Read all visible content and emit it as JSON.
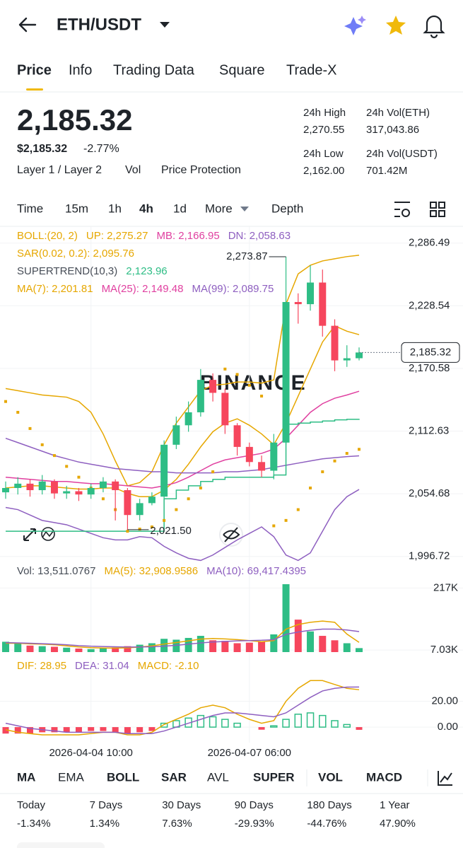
{
  "header": {
    "pair": "ETH/USDT"
  },
  "tabs": [
    "Price",
    "Info",
    "Trading Data",
    "Square",
    "Trade-X"
  ],
  "price": {
    "last": "2,185.32",
    "usd": "$2,185.32",
    "change": "-2.77%",
    "tags": [
      "Layer 1 / Layer 2",
      "Vol",
      "Price Protection"
    ]
  },
  "stats": [
    {
      "label": "24h High",
      "value": "2,270.55"
    },
    {
      "label": "24h Vol(ETH)",
      "value": "317,043.86"
    },
    {
      "label": "24h Low",
      "value": "2,162.00"
    },
    {
      "label": "24h Vol(USDT)",
      "value": "701.42M"
    }
  ],
  "intervals": [
    "Time",
    "15m",
    "1h",
    "4h",
    "1d",
    "More",
    "Depth"
  ],
  "watermark": "BINANCE",
  "chart_data": [
    {
      "type": "candlestick",
      "categories": [
        null,
        null,
        null,
        null,
        null,
        null,
        null,
        "2026-04-04 10:00",
        null,
        null,
        null,
        null,
        null,
        null,
        null,
        null,
        null,
        null,
        null,
        null,
        "2026-04-07 06:00",
        null,
        null,
        null,
        null,
        null,
        null,
        null,
        null,
        null
      ],
      "open": [
        2056,
        2060,
        2064,
        2058,
        2066,
        2055,
        2057,
        2054,
        2060,
        2066,
        2058,
        2035,
        2046,
        2052,
        2100,
        2118,
        2130,
        2160,
        2148,
        2118,
        2098,
        2084,
        2076,
        2102,
        2232,
        2230,
        2250,
        2210,
        2178,
        2180
      ],
      "high": [
        2066,
        2070,
        2068,
        2072,
        2068,
        2062,
        2060,
        2064,
        2070,
        2068,
        2060,
        2050,
        2056,
        2104,
        2126,
        2140,
        2170,
        2166,
        2152,
        2120,
        2102,
        2090,
        2110,
        2273.87,
        2240,
        2266,
        2262,
        2216,
        2192,
        2190
      ],
      "low": [
        2050,
        2054,
        2052,
        2054,
        2050,
        2050,
        2048,
        2050,
        2056,
        2030,
        2021.5,
        2030,
        2044,
        2050,
        2096,
        2112,
        2126,
        2140,
        2110,
        2090,
        2080,
        2070,
        2068,
        2100,
        2212,
        2224,
        2200,
        2168,
        2172,
        2178
      ],
      "close": [
        2060,
        2064,
        2058,
        2066,
        2055,
        2057,
        2054,
        2060,
        2066,
        2058,
        2035,
        2046,
        2052,
        2100,
        2118,
        2130,
        2160,
        2148,
        2118,
        2098,
        2084,
        2076,
        2102,
        2232,
        2230,
        2250,
        2210,
        2178,
        2180,
        2185.32
      ],
      "high_labels": [
        null,
        null,
        null,
        null,
        null,
        null,
        null,
        null,
        null,
        null,
        null,
        null,
        null,
        null,
        null,
        null,
        null,
        null,
        null,
        null,
        null,
        null,
        null,
        "2,273.87",
        null,
        null,
        null,
        null,
        null,
        null
      ],
      "low_labels": [
        null,
        null,
        null,
        null,
        null,
        null,
        null,
        null,
        null,
        null,
        "2,021.50",
        null,
        null,
        null,
        null,
        null,
        null,
        null,
        null,
        null,
        null,
        null,
        null,
        null,
        null,
        null,
        null,
        null,
        null,
        null
      ],
      "last_label": "2,185.32",
      "up_color": "#2ebd85",
      "down_color": "#f6465d",
      "ylim": [
        1990,
        2302
      ],
      "yticks": [
        {
          "value": 2286.49,
          "label": "2,286.49"
        },
        {
          "value": 2228.54,
          "label": "2,228.54"
        },
        {
          "value": 2170.58,
          "label": "2,170.58"
        },
        {
          "value": 2112.63,
          "label": "2,112.63"
        },
        {
          "value": 2054.68,
          "label": "2,054.68"
        },
        {
          "value": 1996.72,
          "label": "1,996.72"
        }
      ],
      "grid": true,
      "series": [
        {
          "color": "#e6a700",
          "style": "line",
          "values": [
            2152,
            2150,
            2148,
            2146,
            2145,
            2144,
            2140,
            2130,
            2110,
            2085,
            2062,
            2065,
            2075,
            2100,
            2120,
            2135,
            2150,
            2155,
            2156,
            2158,
            2158,
            2157,
            2160,
            2230,
            2258,
            2266,
            2270,
            2272,
            2274,
            2275.27
          ]
        },
        {
          "color": "#8e5fc0",
          "style": "line",
          "values": [
            2042,
            2040,
            2035,
            2030,
            2028,
            2026,
            2022,
            2018,
            2014,
            2012,
            2012,
            2015,
            2014,
            2006,
            2000,
            1995,
            1993,
            1998,
            2005,
            2012,
            2018,
            2024,
            2015,
            1998,
            1993,
            2000,
            2020,
            2040,
            2052,
            2058.63
          ]
        },
        {
          "color": "#e6a700",
          "style": "line",
          "values": [
            2060,
            2061,
            2062,
            2062,
            2061,
            2060,
            2059,
            2059,
            2060,
            2060,
            2055,
            2052,
            2052,
            2058,
            2068,
            2082,
            2098,
            2112,
            2120,
            2124,
            2118,
            2110,
            2100,
            2120,
            2145,
            2170,
            2195,
            2210,
            2205,
            2201.81
          ]
        },
        {
          "color": "#e040a0",
          "style": "line",
          "values": [
            2070,
            2069,
            2068,
            2067,
            2066,
            2066,
            2065,
            2064,
            2064,
            2063,
            2062,
            2061,
            2060,
            2062,
            2065,
            2070,
            2076,
            2082,
            2086,
            2088,
            2090,
            2092,
            2096,
            2106,
            2118,
            2130,
            2138,
            2143,
            2146,
            2149.48
          ]
        },
        {
          "color": "#8e5fc0",
          "style": "line",
          "values": [
            2106,
            2102,
            2098,
            2094,
            2090,
            2087,
            2084,
            2082,
            2080,
            2078,
            2077,
            2076,
            2075,
            2075,
            2074,
            2074,
            2074,
            2074,
            2075,
            2075,
            2076,
            2077,
            2079,
            2081,
            2083,
            2085,
            2087,
            2088,
            2089,
            2089.75
          ]
        },
        {
          "color": "#2ebd85",
          "style": "step",
          "values": [
            2020,
            2020,
            2020,
            2020,
            2020,
            2020,
            2020,
            2020,
            2020,
            2020,
            2020,
            2020,
            2020,
            2050,
            2058,
            2062,
            2066,
            2068,
            2070,
            2070,
            2070,
            2070,
            2072,
            2119,
            2120,
            2121,
            2122,
            2123,
            2123.5,
            2123.96
          ]
        },
        {
          "color": "#e6a700",
          "style": "dots",
          "values": [
            2140,
            2130,
            2115,
            2100,
            2090,
            2080,
            2070,
            2060,
            2050,
            2040,
            2020,
            2022,
            2024,
            2030,
            2040,
            2050,
            2060,
            2075,
            2170,
            2165,
            2155,
            2145,
            2025,
            2030,
            2040,
            2060,
            2075,
            2085,
            2092,
            2095.76
          ]
        }
      ],
      "legend": [
        [
          {
            "text": "BOLL:(20, 2)",
            "color": "#e6a700"
          },
          {
            "text": "UP: 2,275.27",
            "color": "#e6a700"
          },
          {
            "text": "MB: 2,166.95",
            "color": "#e040a0"
          },
          {
            "text": "DN: 2,058.63",
            "color": "#8e5fc0"
          }
        ],
        [
          {
            "text": "SAR(0.02, 0.2): 2,095.76",
            "color": "#e6a700"
          }
        ],
        [
          {
            "text": "SUPERTREND(10,3)",
            "color": "#474d57"
          },
          {
            "text": "2,123.96",
            "color": "#2ebd85"
          }
        ],
        [
          {
            "text": "MA(7): 2,201.81",
            "color": "#e6a700"
          },
          {
            "text": "MA(25): 2,149.48",
            "color": "#e040a0"
          },
          {
            "text": "MA(99): 2,089.75",
            "color": "#8e5fc0"
          }
        ]
      ]
    },
    {
      "type": "bar",
      "values": [
        35000,
        30000,
        22000,
        20000,
        18000,
        15000,
        12000,
        10000,
        14000,
        16000,
        20000,
        25000,
        30000,
        45000,
        42000,
        48000,
        55000,
        40000,
        38000,
        30000,
        32000,
        35000,
        60000,
        230000,
        110000,
        70000,
        55000,
        40000,
        30000,
        13511.0767
      ],
      "ylim": [
        0,
        230000
      ],
      "yticks": [
        {
          "value": 217000,
          "label": "217K"
        },
        {
          "value": 7030,
          "label": "7.03K"
        }
      ],
      "series": [
        {
          "color": "#e6a700",
          "values": [
            30000,
            30000,
            28000,
            27000,
            25000,
            21000,
            17400,
            15000,
            13800,
            13400,
            14400,
            17000,
            21000,
            27200,
            32400,
            38000,
            44000,
            46000,
            44600,
            42200,
            39000,
            35000,
            39000,
            77400,
            93400,
            101000,
            105000,
            101000,
            61000,
            32908.9586
          ]
        },
        {
          "color": "#8e5fc0",
          "values": [
            32000,
            31000,
            30000,
            28500,
            27000,
            25000,
            22000,
            20000,
            19000,
            18000,
            17000,
            17500,
            18000,
            20000,
            23000,
            27000,
            31000,
            34000,
            36000,
            38000,
            39000,
            40000,
            42000,
            60000,
            68000,
            74000,
            78000,
            78000,
            75000,
            69417.4395
          ]
        }
      ],
      "legend": [
        [
          {
            "text": "Vol: 13,511.0767",
            "color": "#474d57"
          },
          {
            "text": "MA(5): 32,908.9586",
            "color": "#e6a700"
          },
          {
            "text": "MA(10): 69,417.4395",
            "color": "#8e5fc0"
          }
        ]
      ]
    },
    {
      "type": "macd",
      "values": [
        -5,
        -5,
        -5,
        -4,
        -4,
        -4,
        -4,
        -3,
        -3,
        -4,
        -5,
        -4,
        -3,
        3,
        5,
        7,
        9,
        8,
        6,
        3,
        0,
        -2,
        1,
        6,
        10,
        11,
        9,
        5,
        2,
        -2.1
      ],
      "ylim": [
        -12,
        40
      ],
      "yticks": [
        {
          "value": 20,
          "label": "20.00"
        },
        {
          "value": 0,
          "label": "0.00"
        }
      ],
      "series": [
        {
          "color": "#e6a700",
          "values": [
            -2,
            -4,
            -5,
            -6,
            -6,
            -6,
            -6,
            -5,
            -4,
            -4,
            -6,
            -6,
            -4,
            2,
            6,
            10,
            15,
            17,
            15,
            10,
            6,
            3,
            5,
            20,
            30,
            36,
            36,
            33,
            30,
            28.95
          ]
        },
        {
          "color": "#8e5fc0",
          "values": [
            3,
            1,
            -1,
            -2,
            -3,
            -4,
            -4,
            -4,
            -4,
            -4,
            -5,
            -5,
            -5,
            -3,
            0,
            3,
            6,
            9,
            11,
            11,
            10,
            9,
            8,
            11,
            17,
            23,
            28,
            30,
            31,
            31.04
          ]
        }
      ],
      "legend": [
        [
          {
            "text": "DIF: 28.95",
            "color": "#e6a700"
          },
          {
            "text": "DEA: 31.04",
            "color": "#8e5fc0"
          },
          {
            "text": "MACD: -2.10",
            "color": "#e6a700"
          }
        ]
      ]
    }
  ],
  "indicator_tabs": [
    {
      "text": "MA",
      "active": true
    },
    {
      "text": "EMA",
      "active": false
    },
    {
      "text": "BOLL",
      "active": true
    },
    {
      "text": "SAR",
      "active": true
    },
    {
      "text": "AVL",
      "active": false
    },
    {
      "text": "SUPER",
      "active": true
    },
    {
      "text": "VOL",
      "active": true
    },
    {
      "text": "MACD",
      "active": true
    }
  ],
  "performance": [
    {
      "label": "Today",
      "value": "-1.34%",
      "color": "#f6465d"
    },
    {
      "label": "7 Days",
      "value": "1.34%",
      "color": "#2ebd85"
    },
    {
      "label": "30 Days",
      "value": "7.63%",
      "color": "#2ebd85"
    },
    {
      "label": "90 Days",
      "value": "-29.93%",
      "color": "#f6465d"
    },
    {
      "label": "180 Days",
      "value": "-44.76%",
      "color": "#f6465d"
    },
    {
      "label": "1 Year",
      "value": "47.90%",
      "color": "#2ebd85"
    }
  ]
}
